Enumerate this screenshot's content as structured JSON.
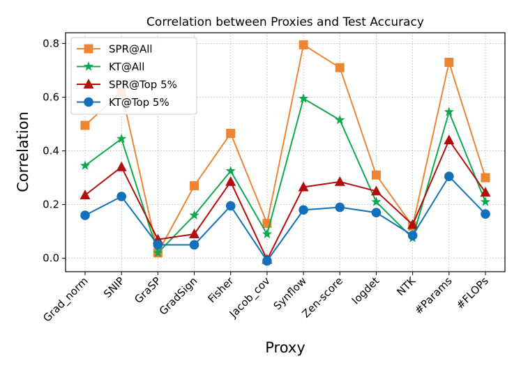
{
  "chart_data": {
    "type": "line",
    "title": "Correlation between Proxies and Test Accuracy",
    "xlabel": "Proxy",
    "ylabel": "Correlation",
    "ylim": [
      -0.05,
      0.84
    ],
    "yticks": [
      0.0,
      0.2,
      0.4,
      0.6,
      0.8
    ],
    "ytick_labels": [
      "0.0",
      "0.2",
      "0.4",
      "0.6",
      "0.8"
    ],
    "grid": true,
    "legend_position": "top-left",
    "categories": [
      "Grad_norm",
      "SNIP",
      "GraSP",
      "GradSign",
      "Fisher",
      "Jacob_cov",
      "Synflow",
      "Zen-score",
      "logdet",
      "NTK",
      "#Params",
      "#FLOPs"
    ],
    "series": [
      {
        "name": "SPR@All",
        "color": "#ED8533",
        "marker": "square",
        "values": [
          0.495,
          0.62,
          0.02,
          0.27,
          0.465,
          0.13,
          0.795,
          0.71,
          0.31,
          0.12,
          0.73,
          0.3
        ]
      },
      {
        "name": "KT@All",
        "color": "#10A84E",
        "marker": "star",
        "values": [
          0.345,
          0.445,
          0.02,
          0.16,
          0.325,
          0.09,
          0.595,
          0.515,
          0.21,
          0.075,
          0.545,
          0.21
        ]
      },
      {
        "name": "SPR@Top 5%",
        "color": "#B30E0E",
        "marker": "triangle",
        "values": [
          0.235,
          0.34,
          0.07,
          0.09,
          0.285,
          -0.005,
          0.265,
          0.285,
          0.25,
          0.125,
          0.44,
          0.245
        ]
      },
      {
        "name": "KT@Top 5%",
        "color": "#1270BA",
        "marker": "circle",
        "values": [
          0.16,
          0.23,
          0.05,
          0.05,
          0.195,
          -0.01,
          0.18,
          0.19,
          0.17,
          0.085,
          0.305,
          0.165
        ]
      }
    ]
  }
}
